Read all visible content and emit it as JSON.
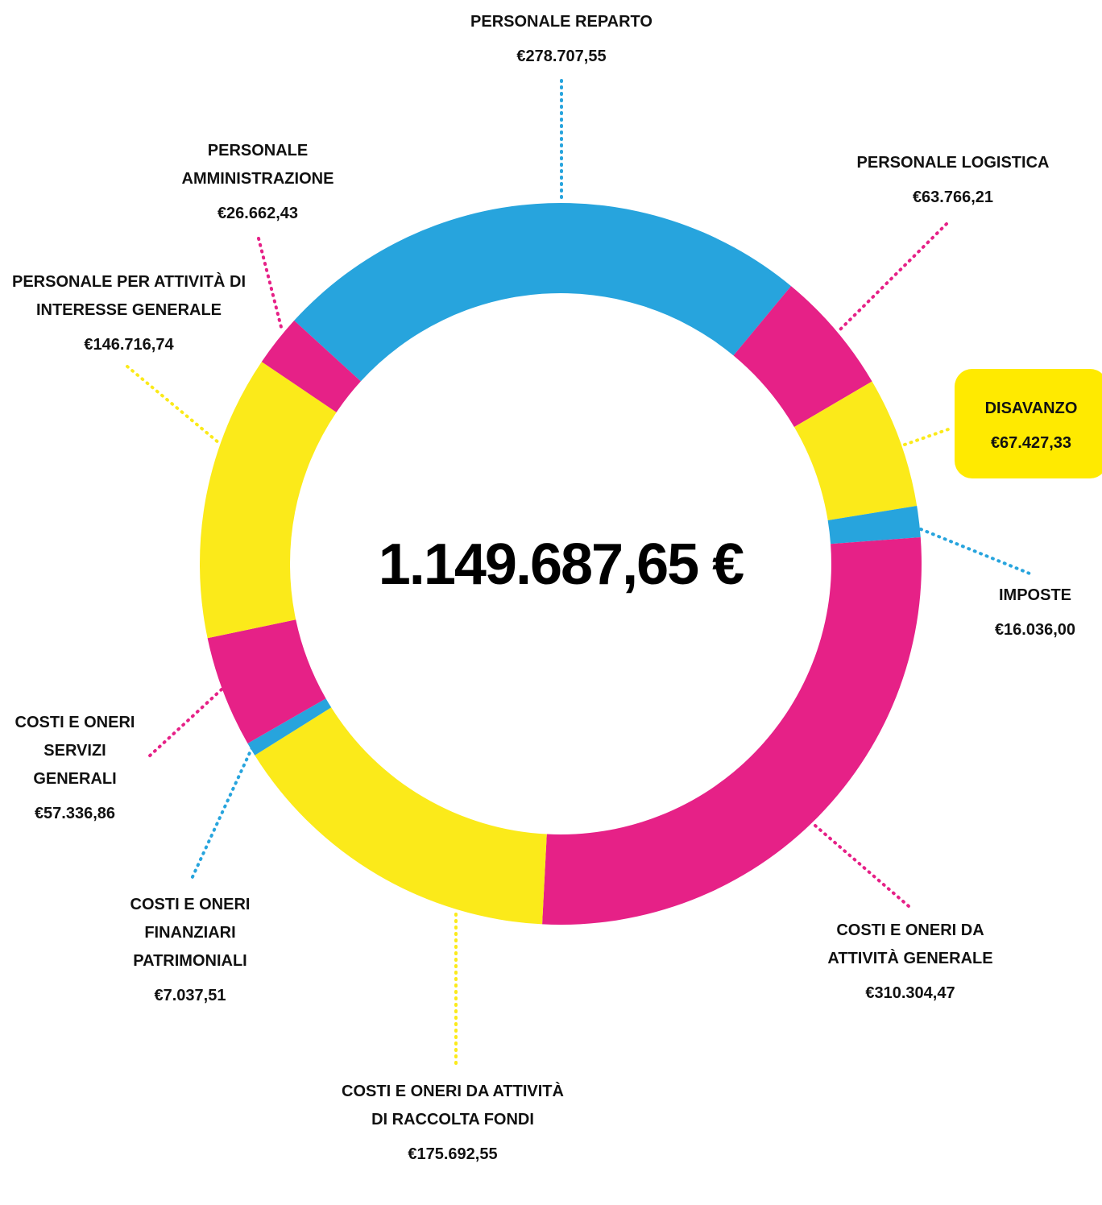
{
  "chart_data": {
    "type": "donut",
    "center_label": "1.149.687,65 €",
    "categories": [
      "PERSONALE REPARTO",
      "PERSONALE LOGISTICA",
      "DISAVANZO",
      "IMPOSTE",
      "COSTI E ONERI DA ATTIVITÀ GENERALE",
      "COSTI E ONERI DA ATTIVITÀ DI RACCOLTA FONDI",
      "COSTI E ONERI FINANZIARI PATRIMONIALI",
      "COSTI E ONERI SERVIZI GENERALI",
      "PERSONALE PER ATTIVITÀ DI INTERESSE GENERALE",
      "PERSONALE AMMINISTRAZIONE"
    ],
    "values": [
      278707.55,
      63766.21,
      67427.33,
      16036.0,
      310304.47,
      175692.55,
      7037.51,
      57336.86,
      146716.74,
      26662.43
    ],
    "value_labels": [
      "€278.707,55",
      "€63.766,21",
      "€67.427,33",
      "€16.036,00",
      "€310.304,47",
      "€175.692,55",
      "€7.037,51",
      "€57.336,86",
      "€146.716,74",
      "€26.662,43"
    ],
    "colors": [
      "#27a4dd",
      "#e62187",
      "#fbea1a",
      "#27a4dd",
      "#e62187",
      "#fbea1a",
      "#27a4dd",
      "#e62187",
      "#fbea1a",
      "#e62187"
    ]
  }
}
